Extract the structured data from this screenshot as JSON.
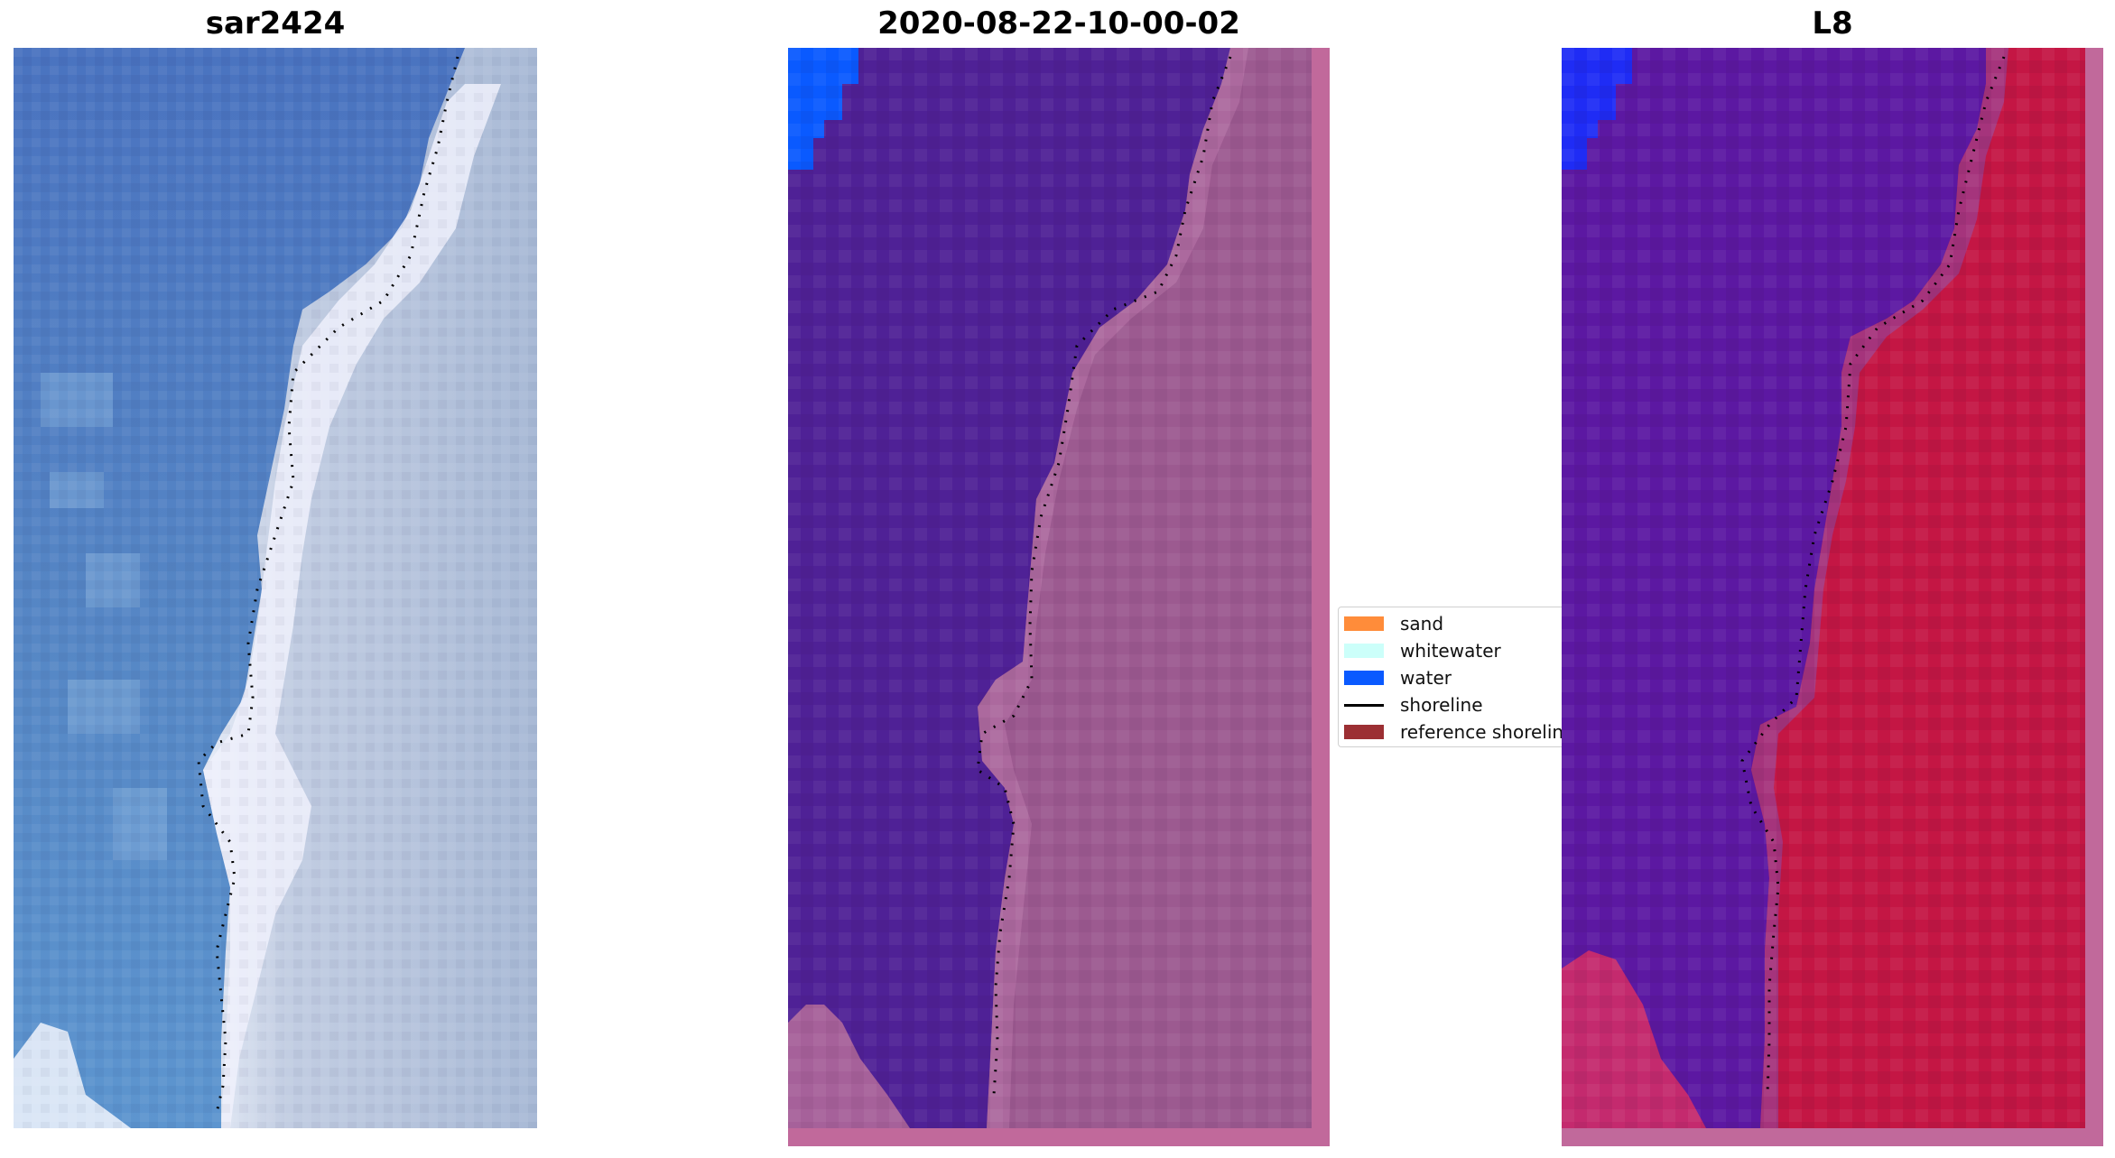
{
  "panels": [
    {
      "title": "sar2424"
    },
    {
      "title": "2020-08-22-10-00-02"
    },
    {
      "title": "L8"
    }
  ],
  "legend": {
    "items": [
      {
        "label": "sand",
        "kind": "patch",
        "color": "#ff8c3a"
      },
      {
        "label": "whitewater",
        "kind": "patch",
        "color": "#ccfffa"
      },
      {
        "label": "water",
        "kind": "patch",
        "color": "#0a5aff"
      },
      {
        "label": "shoreline",
        "kind": "line",
        "color": "#000000"
      },
      {
        "label": "reference shoreline",
        "kind": "patch",
        "color": "#9c2f33"
      }
    ]
  },
  "colors": {
    "sea_rgb": "#4a79c0",
    "land_rgb": "#b6c4dd",
    "water_class": "#4f2196",
    "land_class": "#a25e92",
    "water_highlight": "#0a5aff",
    "l8_water": "#5a16a4",
    "l8_land": "#c41644",
    "frame": "#c1699b"
  }
}
